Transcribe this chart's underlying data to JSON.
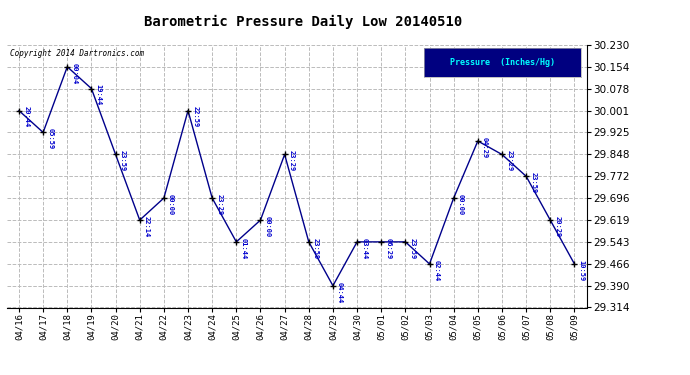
{
  "title": "Barometric Pressure Daily Low 20140510",
  "legend_label": "Pressure  (Inches/Hg)",
  "copyright": "Copyright 2014 Dartronics.com",
  "background_color": "#ffffff",
  "plot_bg_color": "#ffffff",
  "line_color": "#00008B",
  "marker_color": "#000000",
  "label_color": "#0000CD",
  "legend_bg": "#000080",
  "legend_text_color": "#00FFFF",
  "dates": [
    "04/16",
    "04/17",
    "04/18",
    "04/19",
    "04/20",
    "04/21",
    "04/22",
    "04/23",
    "04/24",
    "04/25",
    "04/26",
    "04/27",
    "04/28",
    "04/29",
    "04/30",
    "05/01",
    "05/02",
    "05/03",
    "05/04",
    "05/05",
    "05/06",
    "05/07",
    "05/08",
    "05/09"
  ],
  "values": [
    30.001,
    29.925,
    30.154,
    30.078,
    29.848,
    29.619,
    29.696,
    30.001,
    29.696,
    29.543,
    29.619,
    29.848,
    29.543,
    29.39,
    29.543,
    29.543,
    29.543,
    29.466,
    29.696,
    29.895,
    29.848,
    29.772,
    29.619,
    29.466
  ],
  "timestamps": [
    "20:44",
    "05:59",
    "00:04",
    "19:44",
    "23:59",
    "22:14",
    "00:00",
    "22:59",
    "23:29",
    "01:44",
    "00:00",
    "23:29",
    "23:59",
    "04:44",
    "03:44",
    "06:29",
    "23:59",
    "02:44",
    "00:00",
    "04:29",
    "23:29",
    "23:59",
    "20:29",
    "10:59"
  ],
  "ylim_min": 29.314,
  "ylim_max": 30.23,
  "yticks": [
    29.314,
    29.39,
    29.466,
    29.543,
    29.619,
    29.696,
    29.772,
    29.848,
    29.925,
    30.001,
    30.078,
    30.154,
    30.23
  ],
  "grid_color": "#bbbbbb",
  "grid_style": "--"
}
